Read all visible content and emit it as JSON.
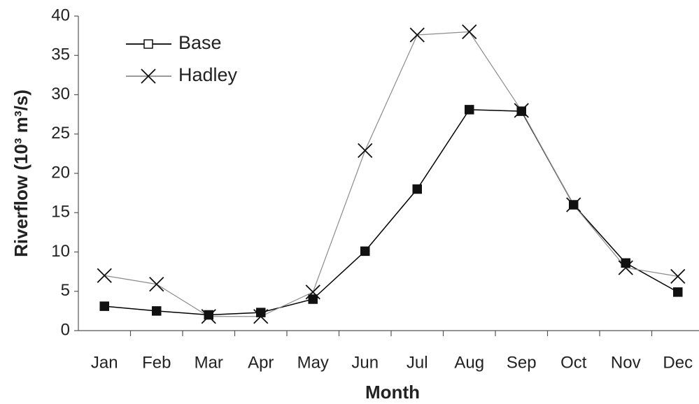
{
  "chart_data": {
    "type": "line",
    "x_label": "Month",
    "y_label": "Riverflow (10³ m³/s)",
    "categories": [
      "Jan",
      "Feb",
      "Mar",
      "Apr",
      "May",
      "Jun",
      "Jul",
      "Aug",
      "Sep",
      "Oct",
      "Nov",
      "Dec"
    ],
    "series": [
      {
        "name": "Base",
        "color": "#000000",
        "marker": "square",
        "values": [
          3.1,
          2.5,
          2.0,
          2.3,
          4.0,
          10.1,
          18.0,
          28.1,
          27.9,
          16.0,
          8.6,
          4.9
        ]
      },
      {
        "name": "Hadley",
        "color": "#8c8c8c",
        "marker": "x",
        "values": [
          7.0,
          5.9,
          1.8,
          1.8,
          4.9,
          22.9,
          37.6,
          38.0,
          28.0,
          16.0,
          8.0,
          6.9
        ]
      }
    ],
    "ylim": [
      0,
      40
    ],
    "yticks": [
      0,
      5,
      10,
      15,
      20,
      25,
      30,
      35,
      40
    ],
    "grid": false,
    "legend": "top-left"
  }
}
